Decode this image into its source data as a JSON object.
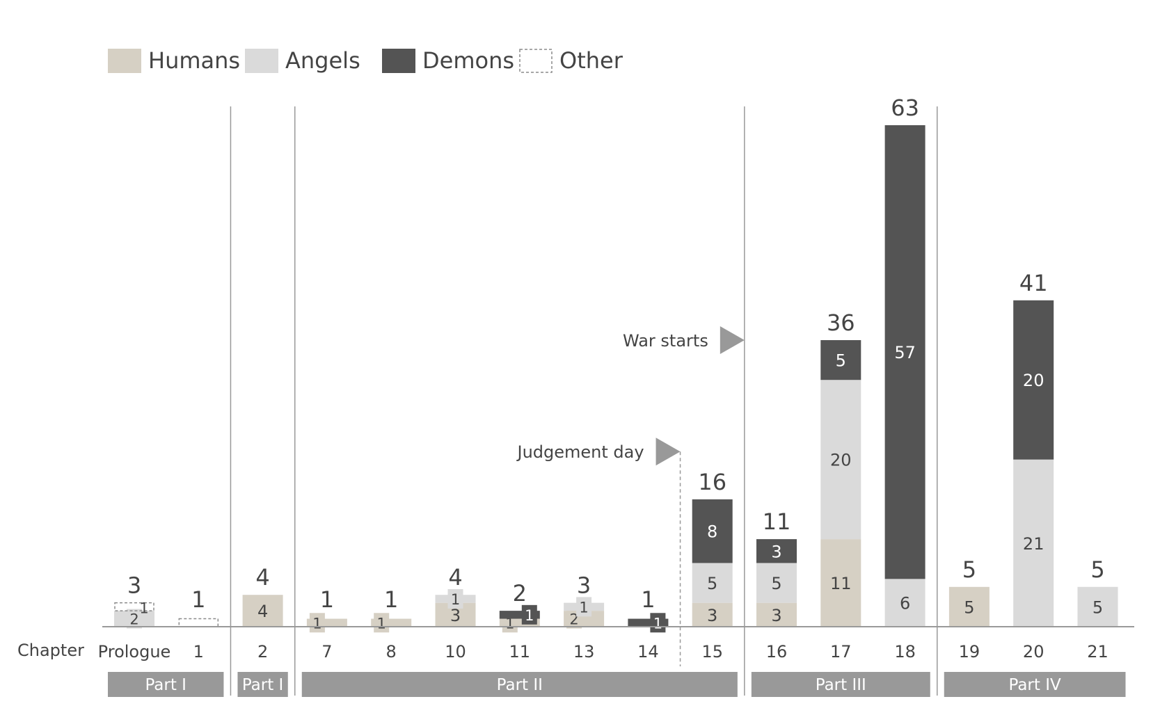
{
  "colors": {
    "humans": "#d6d0c4",
    "angels": "#dadada",
    "demons": "#545454",
    "other_stroke": "#8a8a8a",
    "axis": "#999999",
    "text": "#444444",
    "part_band": "#999999",
    "part_text": "#ffffff",
    "flag": "#999999"
  },
  "chart_data": {
    "type": "bar",
    "stacked": true,
    "title": "",
    "xlabel": "Chapter",
    "ylabel": "",
    "ylim": [
      0,
      63
    ],
    "grid": false,
    "legend": {
      "position": "top-left",
      "entries": [
        "Humans",
        "Angels",
        "Demons",
        "Other"
      ]
    },
    "categories": [
      "Prologue",
      "1",
      "2",
      "7",
      "8",
      "10",
      "11",
      "13",
      "14",
      "15",
      "16",
      "17",
      "18",
      "19",
      "20",
      "21"
    ],
    "series": [
      {
        "name": "Humans",
        "values": [
          0,
          0,
          4,
          1,
          1,
          3,
          1,
          2,
          0,
          3,
          3,
          11,
          0,
          5,
          0,
          0
        ]
      },
      {
        "name": "Angels",
        "values": [
          2,
          0,
          0,
          0,
          0,
          1,
          0,
          1,
          0,
          5,
          5,
          20,
          6,
          0,
          21,
          5
        ]
      },
      {
        "name": "Demons",
        "values": [
          0,
          0,
          0,
          0,
          0,
          0,
          1,
          0,
          1,
          8,
          3,
          5,
          57,
          0,
          20,
          0
        ]
      },
      {
        "name": "Other",
        "values": [
          1,
          1,
          0,
          0,
          0,
          0,
          0,
          0,
          0,
          0,
          0,
          0,
          0,
          0,
          0,
          0
        ]
      }
    ],
    "totals": [
      3,
      1,
      4,
      1,
      1,
      4,
      2,
      3,
      1,
      16,
      11,
      36,
      63,
      5,
      41,
      5
    ],
    "parts": [
      {
        "label": "Part I",
        "from": 0,
        "to": 1
      },
      {
        "label": "Part I",
        "from": 2,
        "to": 2
      },
      {
        "label": "Part II",
        "from": 3,
        "to": 9
      },
      {
        "label": "Part III",
        "from": 10,
        "to": 12
      },
      {
        "label": "Part IV",
        "from": 13,
        "to": 15
      }
    ],
    "annotations": [
      {
        "text": "War starts",
        "between": [
          9,
          10
        ],
        "value": 36
      },
      {
        "text": "Judgement day",
        "between": [
          8,
          9
        ],
        "value": 22
      }
    ]
  }
}
